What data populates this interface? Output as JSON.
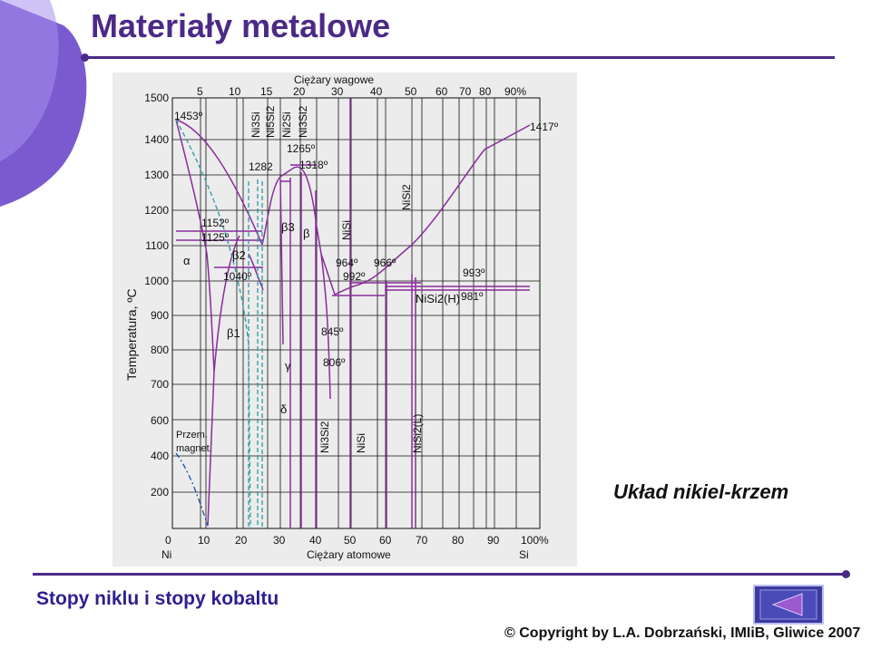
{
  "slide": {
    "title": "Materiały metalowe",
    "caption": "Układ nikiel-krzem",
    "subject": "Stopy niklu i stopy kobaltu",
    "copyright": "© Copyright by L.A. Dobrzański, IMIiB, Gliwice 2007",
    "accent_color": "#4b2a87",
    "nav_button_icon": "triangle-left-icon"
  },
  "diagram": {
    "top_axis_title": "Ciężary wagowe",
    "top_ticks": [
      "5",
      "10",
      "15",
      "20",
      "30",
      "40",
      "50",
      "60",
      "70",
      "80",
      "90%"
    ],
    "bottom_axis_title": "Ciężary atomowe",
    "bottom_ticks": [
      "0",
      "10",
      "20",
      "30",
      "40",
      "50",
      "60",
      "70",
      "80",
      "90",
      "100%"
    ],
    "bottom_left_label": "Ni",
    "bottom_right_label": "Si",
    "y_axis_title": "Temperatura, ºC",
    "y_ticks": [
      "1500",
      "1400",
      "1300",
      "1200",
      "1100",
      "1000",
      "900",
      "800",
      "700",
      "600",
      "400",
      "200"
    ],
    "temps": {
      "t1453": "1453º",
      "t1417": "1417º",
      "t1265": "1265º",
      "t1282": "1282",
      "t1318": "1318º",
      "t1152": "1152º",
      "t1125": "1125º",
      "t1040": "1040º",
      "t964": "964º",
      "t966": "966º",
      "t992": "992º",
      "t993": "993º",
      "t981": "981º",
      "t845": "845º",
      "t806": "806º"
    },
    "phases": {
      "alpha": "α",
      "beta": "β",
      "beta1": "β1",
      "beta2": "β2",
      "beta3": "β3",
      "gamma": "γ",
      "delta": "δ",
      "nisi2h": "NiSi2(H)",
      "magnet1": "Przem.",
      "magnet2": "magnet."
    },
    "compounds": {
      "ni3si_top": "Ni3Si",
      "ni5si2_top": "Ni5Si2",
      "ni2si_top": "Ni2Si",
      "ni3si2_top": "Ni3Si2",
      "nisi_top": "NiSi",
      "nisi2_top": "NiSi2",
      "ni3si2_bottom": "Ni3Si2",
      "nisi_bottom": "NiSi",
      "nisi2l_bottom": "NiSi2(L)"
    }
  }
}
